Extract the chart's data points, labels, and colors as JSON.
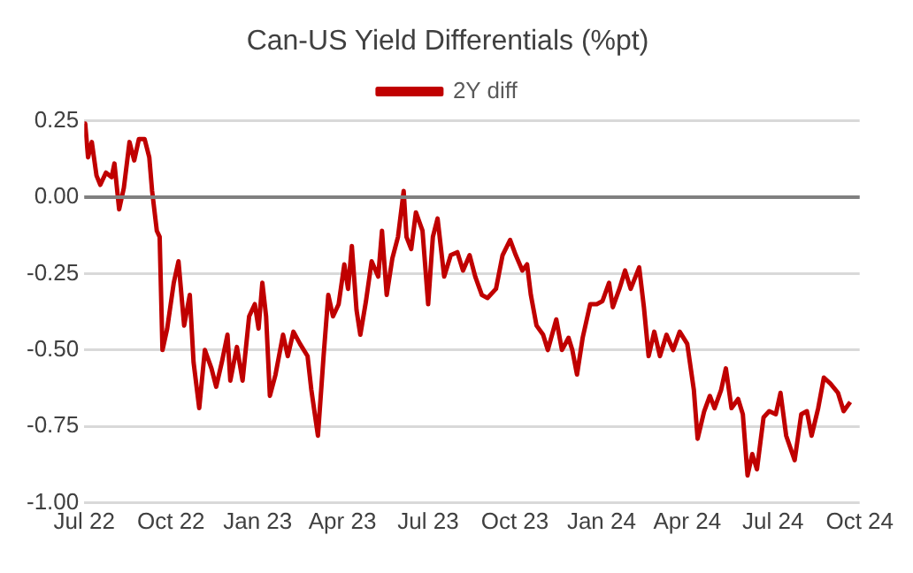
{
  "chart_data": {
    "type": "line",
    "title": "Can-US Yield Differentials (%pt)",
    "x": [
      "2022-07-01",
      "2022-07-02",
      "2022-07-05",
      "2022-07-09",
      "2022-07-14",
      "2022-07-18",
      "2022-07-24",
      "2022-07-30",
      "2022-08-02",
      "2022-08-07",
      "2022-08-12",
      "2022-08-18",
      "2022-08-23",
      "2022-08-28",
      "2022-09-03",
      "2022-09-08",
      "2022-09-11",
      "2022-09-16",
      "2022-09-19",
      "2022-09-22",
      "2022-09-27",
      "2022-10-04",
      "2022-10-09",
      "2022-10-15",
      "2022-10-21",
      "2022-10-25",
      "2022-10-31",
      "2022-11-06",
      "2022-11-13",
      "2022-11-18",
      "2022-11-24",
      "2022-11-30",
      "2022-12-03",
      "2022-12-10",
      "2022-12-16",
      "2022-12-23",
      "2022-12-29",
      "2023-01-02",
      "2023-01-06",
      "2023-01-10",
      "2023-01-14",
      "2023-01-20",
      "2023-01-28",
      "2023-02-02",
      "2023-02-08",
      "2023-02-15",
      "2023-02-23",
      "2023-02-27",
      "2023-03-06",
      "2023-03-12",
      "2023-03-17",
      "2023-03-22",
      "2023-03-28",
      "2023-04-03",
      "2023-04-07",
      "2023-04-11",
      "2023-04-16",
      "2023-04-20",
      "2023-04-26",
      "2023-05-02",
      "2023-05-09",
      "2023-05-13",
      "2023-05-18",
      "2023-05-24",
      "2023-05-30",
      "2023-06-05",
      "2023-06-08",
      "2023-06-13",
      "2023-06-18",
      "2023-06-25",
      "2023-07-01",
      "2023-07-06",
      "2023-07-11",
      "2023-07-18",
      "2023-07-25",
      "2023-08-01",
      "2023-08-07",
      "2023-08-14",
      "2023-08-20",
      "2023-08-27",
      "2023-09-02",
      "2023-09-11",
      "2023-09-18",
      "2023-09-26",
      "2023-10-02",
      "2023-10-09",
      "2023-10-14",
      "2023-10-18",
      "2023-10-24",
      "2023-10-31",
      "2023-11-05",
      "2023-11-14",
      "2023-11-20",
      "2023-11-27",
      "2023-12-01",
      "2023-12-06",
      "2023-12-12",
      "2023-12-20",
      "2023-12-27",
      "2024-01-02",
      "2024-01-09",
      "2024-01-13",
      "2024-01-20",
      "2024-01-26",
      "2024-02-01",
      "2024-02-10",
      "2024-02-15",
      "2024-02-20",
      "2024-02-26",
      "2024-03-03",
      "2024-03-10",
      "2024-03-17",
      "2024-03-24",
      "2024-04-01",
      "2024-04-08",
      "2024-04-12",
      "2024-04-19",
      "2024-04-25",
      "2024-04-30",
      "2024-05-07",
      "2024-05-12",
      "2024-05-18",
      "2024-05-25",
      "2024-05-30",
      "2024-06-04",
      "2024-06-09",
      "2024-06-14",
      "2024-06-21",
      "2024-06-27",
      "2024-07-04",
      "2024-07-09",
      "2024-07-15",
      "2024-07-24",
      "2024-07-31",
      "2024-08-06",
      "2024-08-11",
      "2024-08-18",
      "2024-08-24",
      "2024-08-31",
      "2024-09-08",
      "2024-09-14",
      "2024-09-21"
    ],
    "series": [
      {
        "name": "2Y diff",
        "color": "#c00000",
        "values": [
          0.24,
          0.24,
          0.13,
          0.18,
          0.07,
          0.04,
          0.08,
          0.065,
          0.11,
          -0.04,
          0.03,
          0.18,
          0.12,
          0.19,
          0.19,
          0.13,
          0.02,
          -0.11,
          -0.13,
          -0.5,
          -0.43,
          -0.28,
          -0.21,
          -0.42,
          -0.32,
          -0.54,
          -0.69,
          -0.5,
          -0.56,
          -0.62,
          -0.54,
          -0.45,
          -0.6,
          -0.49,
          -0.6,
          -0.39,
          -0.35,
          -0.43,
          -0.28,
          -0.39,
          -0.65,
          -0.58,
          -0.45,
          -0.52,
          -0.44,
          -0.48,
          -0.52,
          -0.63,
          -0.78,
          -0.52,
          -0.32,
          -0.39,
          -0.35,
          -0.22,
          -0.3,
          -0.16,
          -0.37,
          -0.45,
          -0.34,
          -0.21,
          -0.26,
          -0.11,
          -0.32,
          -0.2,
          -0.13,
          0.02,
          -0.13,
          -0.17,
          -0.05,
          -0.11,
          -0.35,
          -0.13,
          -0.07,
          -0.26,
          -0.19,
          -0.18,
          -0.24,
          -0.19,
          -0.26,
          -0.32,
          -0.33,
          -0.3,
          -0.19,
          -0.14,
          -0.19,
          -0.24,
          -0.22,
          -0.32,
          -0.42,
          -0.45,
          -0.5,
          -0.4,
          -0.5,
          -0.46,
          -0.5,
          -0.58,
          -0.46,
          -0.35,
          -0.35,
          -0.34,
          -0.28,
          -0.36,
          -0.3,
          -0.24,
          -0.3,
          -0.23,
          -0.36,
          -0.52,
          -0.44,
          -0.52,
          -0.45,
          -0.5,
          -0.44,
          -0.48,
          -0.63,
          -0.79,
          -0.7,
          -0.65,
          -0.69,
          -0.63,
          -0.56,
          -0.69,
          -0.66,
          -0.71,
          -0.91,
          -0.84,
          -0.89,
          -0.72,
          -0.7,
          -0.71,
          -0.64,
          -0.78,
          -0.86,
          -0.71,
          -0.7,
          -0.78,
          -0.69,
          -0.59,
          -0.61,
          -0.64,
          -0.7,
          -0.67
        ]
      }
    ],
    "xlim": [
      "2022-07-01",
      "2024-10-01"
    ],
    "xticks": [
      {
        "value": "2022-07-01",
        "label": "Jul 22"
      },
      {
        "value": "2022-10-01",
        "label": "Oct 22"
      },
      {
        "value": "2023-01-01",
        "label": "Jan 23"
      },
      {
        "value": "2023-04-01",
        "label": "Apr 23"
      },
      {
        "value": "2023-07-01",
        "label": "Jul 23"
      },
      {
        "value": "2023-10-01",
        "label": "Oct 23"
      },
      {
        "value": "2024-01-01",
        "label": "Jan 24"
      },
      {
        "value": "2024-04-01",
        "label": "Apr 24"
      },
      {
        "value": "2024-07-01",
        "label": "Jul 24"
      },
      {
        "value": "2024-10-01",
        "label": "Oct 24"
      }
    ],
    "ylim": [
      -1,
      0.25
    ],
    "yticks": [
      0.25,
      {
        "value": 0,
        "label": "0.00"
      },
      -0.25,
      {
        "value": -0.5,
        "label": "-0.50"
      },
      {
        "value": -0.75,
        "label": "-0.75"
      },
      {
        "value": -1,
        "label": "-1.00"
      }
    ],
    "ref_lines": [
      {
        "axis": "y",
        "value": 0,
        "color": "#808080"
      }
    ],
    "grid": "y",
    "legend": "top"
  }
}
